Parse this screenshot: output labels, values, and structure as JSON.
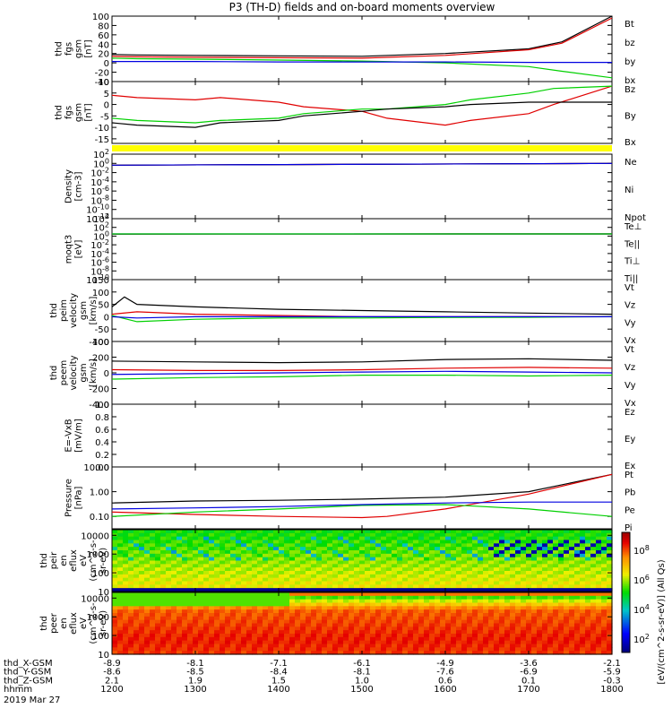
{
  "title": "P3 (TH-D) fields and on-board moments overview",
  "colors": {
    "black": "#000000",
    "red": "#e00000",
    "green": "#00d000",
    "blue": "#0000e0",
    "yellow": "#ffff00"
  },
  "chart_data": [
    {
      "type": "line",
      "ylabel": [
        "thd",
        "fgs",
        "gsm",
        "[nT]"
      ],
      "yticks": [
        "100",
        "80",
        "60",
        "40",
        "20",
        "0",
        "-20",
        "-40"
      ],
      "ylim": [
        -40,
        100
      ],
      "series": [
        {
          "name": "Bt",
          "color": "#000000",
          "x": [
            1200,
            1230,
            1300,
            1400,
            1500,
            1600,
            1700,
            1740,
            1800
          ],
          "values": [
            18,
            17,
            16,
            15,
            14,
            20,
            30,
            45,
            100
          ]
        },
        {
          "name": "bz",
          "color": "#e00000",
          "x": [
            1200,
            1230,
            1300,
            1400,
            1500,
            1600,
            1700,
            1740,
            1800
          ],
          "values": [
            14,
            13,
            12,
            11,
            10,
            16,
            28,
            42,
            96
          ]
        },
        {
          "name": "by",
          "color": "#00d000",
          "x": [
            1200,
            1230,
            1300,
            1400,
            1500,
            1600,
            1700,
            1740,
            1800
          ],
          "values": [
            10,
            9,
            8,
            6,
            4,
            0,
            -8,
            -18,
            -32
          ]
        },
        {
          "name": "bx",
          "color": "#0000e0",
          "x": [
            1200,
            1300,
            1400,
            1500,
            1600,
            1700,
            1800
          ],
          "values": [
            3,
            3,
            2,
            2,
            2,
            1,
            1
          ]
        }
      ]
    },
    {
      "type": "line",
      "ylabel": [
        "thd",
        "fgs",
        "gsm",
        "[nT]"
      ],
      "yticks": [
        "10",
        "5",
        "0",
        "-5",
        "-10",
        "-15"
      ],
      "ylim": [
        -17,
        10
      ],
      "series": [
        {
          "name": "Bz",
          "color": "#e00000",
          "x": [
            1200,
            1230,
            1300,
            1330,
            1400,
            1430,
            1500,
            1530,
            1600,
            1630,
            1700,
            1730,
            1800
          ],
          "values": [
            4,
            3,
            2,
            3,
            1,
            -1,
            -3,
            -6,
            -9,
            -7,
            -4,
            0,
            8
          ]
        },
        {
          "name": "By",
          "color": "#00d000",
          "x": [
            1200,
            1230,
            1300,
            1330,
            1400,
            1430,
            1500,
            1530,
            1600,
            1630,
            1700,
            1730,
            1800
          ],
          "values": [
            -6,
            -7,
            -8,
            -7,
            -6,
            -4,
            -2,
            -2,
            0,
            2,
            5,
            7,
            8
          ]
        },
        {
          "name": "Bx",
          "color": "#000000",
          "x": [
            1200,
            1230,
            1300,
            1330,
            1400,
            1430,
            1500,
            1530,
            1600,
            1630,
            1700,
            1730,
            1800
          ],
          "values": [
            -8,
            -9,
            -10,
            -8,
            -7,
            -5,
            -3,
            -2,
            -1,
            0,
            1,
            1,
            1
          ]
        }
      ]
    },
    {
      "type": "line",
      "ylabel": [
        "Density",
        "[cm-3]"
      ],
      "yticks": [
        "10^2",
        "10^0",
        "10^-2",
        "10^-4",
        "10^-6",
        "10^-8",
        "10^-10",
        "10^-12"
      ],
      "log": true,
      "ylim": [
        -12,
        2
      ],
      "series": [
        {
          "name": "Ne",
          "color": "#e00000",
          "x": [
            1200,
            1800
          ],
          "values": [
            0.4,
            1.0
          ]
        },
        {
          "name": "Ni",
          "color": "#000000",
          "x": [
            1200,
            1800
          ],
          "values": [
            0.4,
            1.0
          ]
        },
        {
          "name": "Npot",
          "color": "#0000e0",
          "x": [
            1200,
            1800
          ],
          "values": [
            0.4,
            1.0
          ]
        }
      ]
    },
    {
      "type": "line",
      "ylabel": [
        "moqt3",
        "[eV]"
      ],
      "yticks": [
        "10^4",
        "10^2",
        "10^0",
        "10^-2",
        "10^-4",
        "10^-6",
        "10^-8",
        "10^-10"
      ],
      "log": true,
      "ylim": [
        -10,
        4
      ],
      "series": [
        {
          "name": "Te⊥",
          "color": "#e00000",
          "x": [
            1200,
            1800
          ],
          "values": [
            3.0,
            3.1
          ]
        },
        {
          "name": "Te||",
          "color": "#000000",
          "x": [
            1200,
            1800
          ],
          "values": [
            3.0,
            3.1
          ]
        },
        {
          "name": "Ti⊥",
          "color": "#0000e0",
          "x": [
            1200,
            1800
          ],
          "values": [
            3.1,
            3.2
          ]
        },
        {
          "name": "Ti||",
          "color": "#00d000",
          "x": [
            1200,
            1800
          ],
          "values": [
            3.1,
            3.2
          ]
        }
      ]
    },
    {
      "type": "line",
      "ylabel": [
        "thd",
        "peim",
        "velocity",
        "gsm",
        "[km/s]"
      ],
      "yticks": [
        "150",
        "100",
        "50",
        "0",
        "-50",
        "-100"
      ],
      "ylim": [
        -100,
        150
      ],
      "series": [
        {
          "name": "Vt",
          "color": "#000000",
          "x": [
            1200,
            1215,
            1230,
            1300,
            1400,
            1500,
            1600,
            1700,
            1800
          ],
          "values": [
            40,
            80,
            50,
            40,
            30,
            25,
            20,
            15,
            10
          ]
        },
        {
          "name": "Vz",
          "color": "#e00000",
          "x": [
            1200,
            1230,
            1300,
            1400,
            1500,
            1600,
            1700,
            1800
          ],
          "values": [
            10,
            20,
            10,
            5,
            0,
            0,
            0,
            0
          ]
        },
        {
          "name": "Vy",
          "color": "#00d000",
          "x": [
            1200,
            1230,
            1300,
            1400,
            1500,
            1600,
            1700,
            1800
          ],
          "values": [
            5,
            -20,
            -10,
            -5,
            -5,
            -3,
            -2,
            0
          ]
        },
        {
          "name": "Vx",
          "color": "#0000e0",
          "x": [
            1200,
            1230,
            1300,
            1400,
            1500,
            1600,
            1700,
            1800
          ],
          "values": [
            0,
            -5,
            0,
            0,
            0,
            0,
            0,
            0
          ]
        }
      ]
    },
    {
      "type": "line",
      "ylabel": [
        "thd",
        "peem",
        "velocity",
        "gsm",
        "[km/s]"
      ],
      "yticks": [
        "400",
        "200",
        "0",
        "-200",
        "-400"
      ],
      "ylim": [
        -400,
        400
      ],
      "series": [
        {
          "name": "Vt",
          "color": "#000000",
          "x": [
            1200,
            1300,
            1400,
            1500,
            1600,
            1700,
            1800
          ],
          "values": [
            150,
            140,
            130,
            140,
            170,
            180,
            160
          ]
        },
        {
          "name": "Vz",
          "color": "#e00000",
          "x": [
            1200,
            1300,
            1400,
            1500,
            1600,
            1700,
            1800
          ],
          "values": [
            40,
            30,
            30,
            40,
            60,
            70,
            60
          ]
        },
        {
          "name": "Vy",
          "color": "#00d000",
          "x": [
            1200,
            1300,
            1400,
            1500,
            1600,
            1700,
            1800
          ],
          "values": [
            -80,
            -60,
            -50,
            -30,
            -30,
            -40,
            -30
          ]
        },
        {
          "name": "Vx",
          "color": "#0000e0",
          "x": [
            1200,
            1300,
            1400,
            1500,
            1600,
            1700,
            1800
          ],
          "values": [
            -20,
            -10,
            0,
            10,
            20,
            10,
            0
          ]
        }
      ]
    },
    {
      "type": "line",
      "ylabel": [
        "E=-VxB",
        "[mV/m]"
      ],
      "yticks": [
        "1.0",
        "0.8",
        "0.6",
        "0.4",
        "0.2",
        "0.0"
      ],
      "ylim": [
        0,
        1
      ],
      "series": [
        {
          "name": "Ez",
          "color": "#e00000",
          "x": [],
          "values": []
        },
        {
          "name": "Ey",
          "color": "#00d000",
          "x": [],
          "values": []
        },
        {
          "name": "Ex",
          "color": "#0000e0",
          "x": [],
          "values": []
        }
      ]
    },
    {
      "type": "line",
      "ylabel": [
        "Pressure",
        "[nPa]"
      ],
      "yticks": [
        "10.00",
        "1.00",
        "0.10"
      ],
      "log": true,
      "ylim": [
        -1.5,
        1
      ],
      "series": [
        {
          "name": "Pt",
          "color": "#000000",
          "x": [
            1200,
            1300,
            1400,
            1500,
            1600,
            1700,
            1800
          ],
          "values": [
            0.35,
            0.42,
            0.45,
            0.5,
            0.6,
            1.0,
            5.0
          ]
        },
        {
          "name": "Pb",
          "color": "#e00000",
          "x": [
            1200,
            1300,
            1400,
            1500,
            1530,
            1600,
            1700,
            1800
          ],
          "values": [
            0.15,
            0.12,
            0.1,
            0.09,
            0.1,
            0.2,
            0.8,
            5.0
          ]
        },
        {
          "name": "Pe",
          "color": "#00d000",
          "x": [
            1200,
            1300,
            1400,
            1500,
            1600,
            1700,
            1800
          ],
          "values": [
            0.1,
            0.15,
            0.2,
            0.28,
            0.3,
            0.2,
            0.1
          ]
        },
        {
          "name": "Pi",
          "color": "#0000e0",
          "x": [
            1200,
            1300,
            1400,
            1500,
            1600,
            1700,
            1800
          ],
          "values": [
            0.2,
            0.22,
            0.25,
            0.3,
            0.35,
            0.38,
            0.38
          ]
        }
      ]
    },
    {
      "type": "heatmap",
      "ylabel": [
        "thd",
        "peir",
        "en",
        "eflux",
        "eV",
        "(cm^2-s-",
        "sr-eV)"
      ],
      "yticks": [
        "10000",
        "1000",
        "100",
        "10"
      ],
      "log": true,
      "ylim": [
        10,
        20000
      ]
    },
    {
      "type": "heatmap",
      "ylabel": [
        "thd",
        "peer",
        "en",
        "eflux",
        "eV",
        "(cm^2-s-",
        "sr-eV)"
      ],
      "yticks": [
        "10000",
        "1000",
        "100",
        "10"
      ],
      "log": true,
      "ylim": [
        10,
        20000
      ]
    }
  ],
  "colorbar": {
    "ticks": [
      "10^8",
      "10^6",
      "10^4",
      "10^2"
    ],
    "label": "[eV/(cm^2-s-sr-eV)] (All Qs)"
  },
  "xaxis": {
    "rows": [
      {
        "label": "thd_X-GSM",
        "values": [
          "-8.9",
          "-8.1",
          "-7.1",
          "-6.1",
          "-4.9",
          "-3.6",
          "-2.1"
        ]
      },
      {
        "label": "thd_Y-GSM",
        "values": [
          "-8.6",
          "-8.5",
          "-8.4",
          "-8.1",
          "-7.6",
          "-6.9",
          "-5.9"
        ]
      },
      {
        "label": "thd_Z-GSM",
        "values": [
          "2.1",
          "1.9",
          "1.5",
          "1.0",
          "0.6",
          "0.1",
          "-0.3"
        ]
      },
      {
        "label": "hhmm",
        "values": [
          "1200",
          "1300",
          "1400",
          "1500",
          "1600",
          "1700",
          "1800"
        ]
      }
    ],
    "date": "2019 Mar 27"
  }
}
